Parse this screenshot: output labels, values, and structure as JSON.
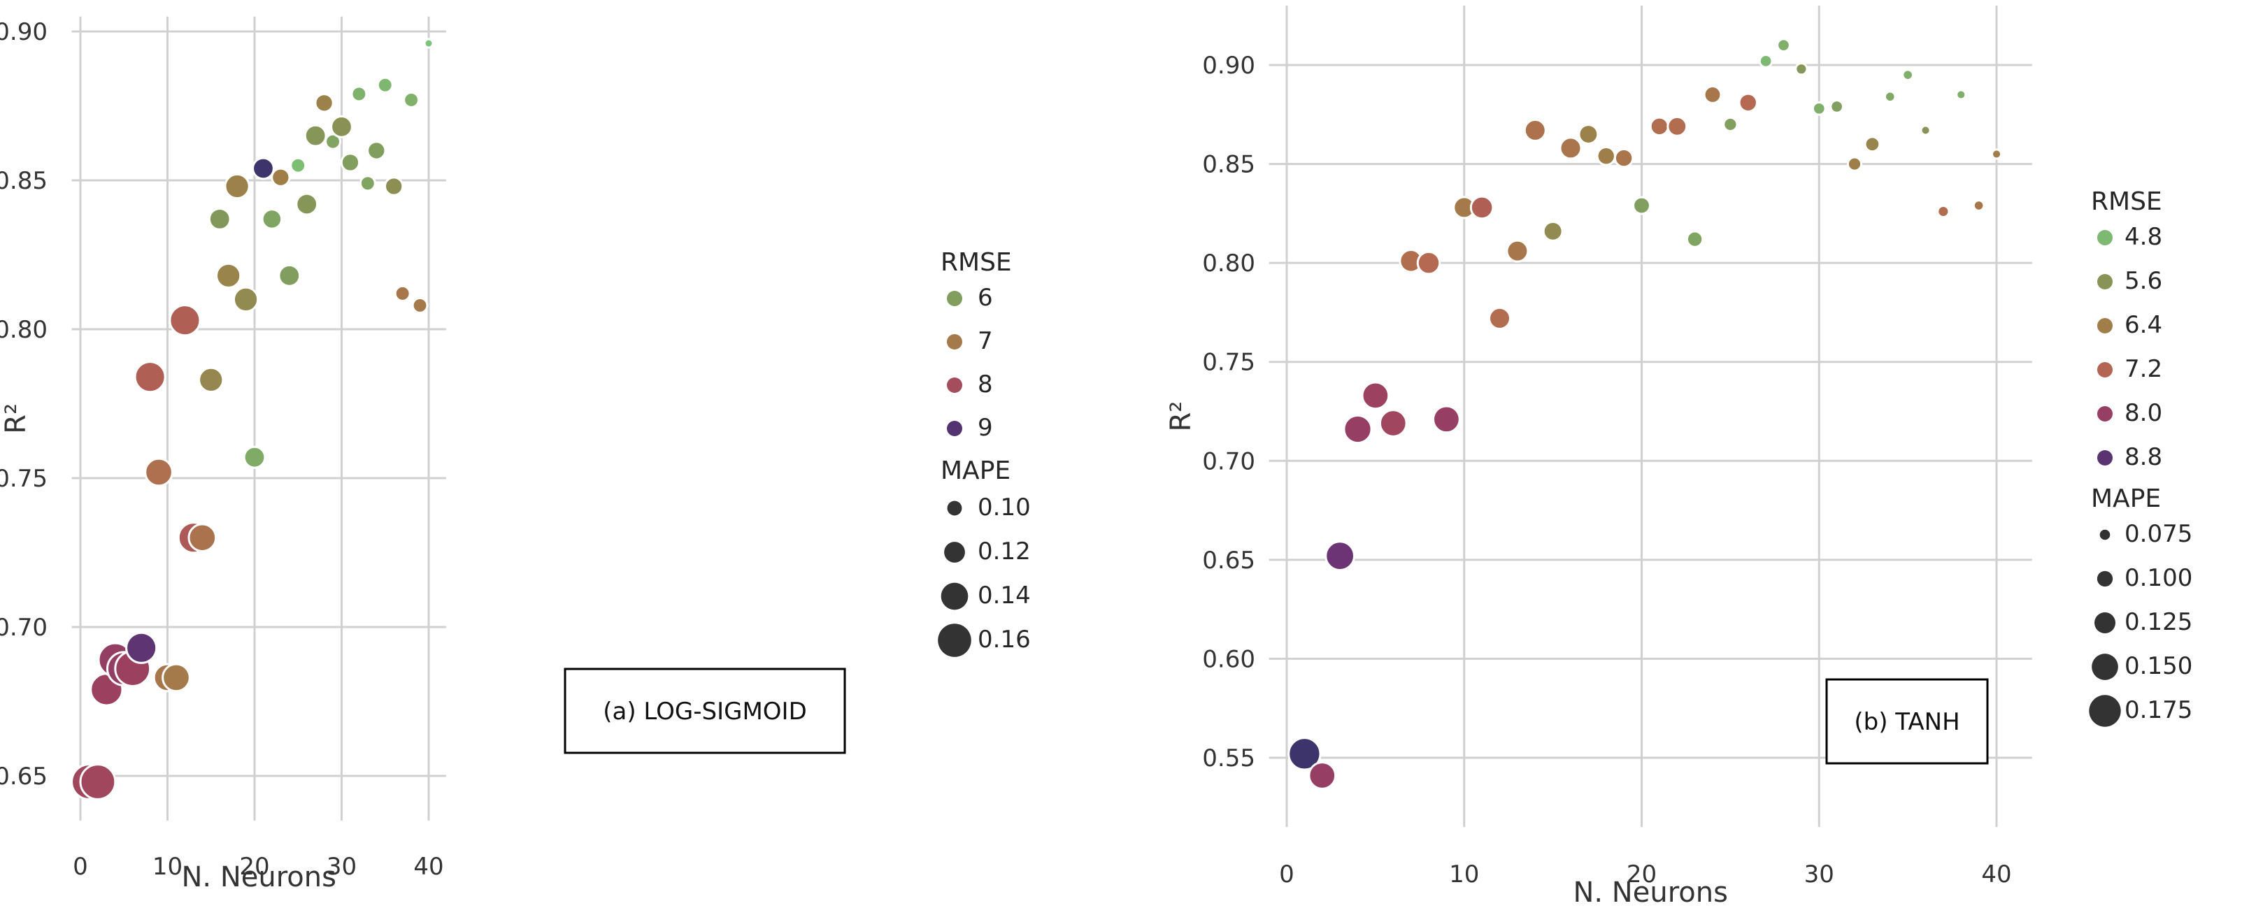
{
  "chart_data": [
    {
      "type": "scatter",
      "annotation": "(a) LOG-SIGMOID",
      "xlabel": "N. Neurons",
      "ylabel": "R²",
      "xlim": [
        -1,
        42
      ],
      "ylim": [
        0.635,
        0.905
      ],
      "xticks": [
        0,
        10,
        20,
        30,
        40
      ],
      "yticks": [
        0.65,
        0.7,
        0.75,
        0.8,
        0.85,
        0.9
      ],
      "ytick_labels": [
        "0.65",
        "0.70",
        "0.75",
        "0.80",
        "0.85",
        "0.90"
      ],
      "grid": true,
      "hue_range": [
        5.4,
        9.3
      ],
      "size_range": [
        0.08,
        0.17
      ],
      "legend": {
        "hue_title": "RMSE",
        "hue_values": [
          6,
          7,
          8,
          9
        ],
        "hue_labels": [
          "6",
          "7",
          "8",
          "9"
        ],
        "size_title": "MAPE",
        "size_values": [
          0.1,
          0.12,
          0.14,
          0.16
        ],
        "size_labels": [
          "0.10",
          "0.12",
          "0.14",
          "0.16"
        ]
      },
      "points": [
        {
          "x": 1,
          "y": 0.648,
          "rmse": 8.1,
          "mape": 0.165
        },
        {
          "x": 2,
          "y": 0.648,
          "rmse": 8.1,
          "mape": 0.165
        },
        {
          "x": 3,
          "y": 0.679,
          "rmse": 8.2,
          "mape": 0.155
        },
        {
          "x": 4,
          "y": 0.689,
          "rmse": 8.3,
          "mape": 0.16
        },
        {
          "x": 5,
          "y": 0.686,
          "rmse": 8.3,
          "mape": 0.16
        },
        {
          "x": 6,
          "y": 0.686,
          "rmse": 8.2,
          "mape": 0.165
        },
        {
          "x": 7,
          "y": 0.693,
          "rmse": 8.9,
          "mape": 0.15
        },
        {
          "x": 8,
          "y": 0.784,
          "rmse": 7.7,
          "mape": 0.15
        },
        {
          "x": 9,
          "y": 0.752,
          "rmse": 7.3,
          "mape": 0.14
        },
        {
          "x": 10,
          "y": 0.683,
          "rmse": 7.1,
          "mape": 0.14
        },
        {
          "x": 11,
          "y": 0.683,
          "rmse": 7.0,
          "mape": 0.14
        },
        {
          "x": 12,
          "y": 0.803,
          "rmse": 7.7,
          "mape": 0.15
        },
        {
          "x": 13,
          "y": 0.73,
          "rmse": 7.8,
          "mape": 0.15
        },
        {
          "x": 14,
          "y": 0.73,
          "rmse": 7.2,
          "mape": 0.14
        },
        {
          "x": 15,
          "y": 0.783,
          "rmse": 6.6,
          "mape": 0.13
        },
        {
          "x": 16,
          "y": 0.837,
          "rmse": 6.1,
          "mape": 0.12
        },
        {
          "x": 17,
          "y": 0.818,
          "rmse": 6.7,
          "mape": 0.13
        },
        {
          "x": 18,
          "y": 0.848,
          "rmse": 6.8,
          "mape": 0.13
        },
        {
          "x": 19,
          "y": 0.81,
          "rmse": 6.5,
          "mape": 0.13
        },
        {
          "x": 20,
          "y": 0.757,
          "rmse": 5.8,
          "mape": 0.12
        },
        {
          "x": 21,
          "y": 0.854,
          "rmse": 9.2,
          "mape": 0.12
        },
        {
          "x": 22,
          "y": 0.837,
          "rmse": 5.9,
          "mape": 0.115
        },
        {
          "x": 23,
          "y": 0.851,
          "rmse": 6.9,
          "mape": 0.11
        },
        {
          "x": 24,
          "y": 0.818,
          "rmse": 6.0,
          "mape": 0.12
        },
        {
          "x": 25,
          "y": 0.855,
          "rmse": 5.5,
          "mape": 0.1
        },
        {
          "x": 26,
          "y": 0.842,
          "rmse": 6.2,
          "mape": 0.12
        },
        {
          "x": 27,
          "y": 0.865,
          "rmse": 6.2,
          "mape": 0.12
        },
        {
          "x": 28,
          "y": 0.876,
          "rmse": 6.8,
          "mape": 0.11
        },
        {
          "x": 29,
          "y": 0.863,
          "rmse": 5.9,
          "mape": 0.1
        },
        {
          "x": 30,
          "y": 0.868,
          "rmse": 6.3,
          "mape": 0.12
        },
        {
          "x": 31,
          "y": 0.856,
          "rmse": 6.0,
          "mape": 0.11
        },
        {
          "x": 32,
          "y": 0.879,
          "rmse": 5.7,
          "mape": 0.1
        },
        {
          "x": 33,
          "y": 0.849,
          "rmse": 5.9,
          "mape": 0.1
        },
        {
          "x": 34,
          "y": 0.86,
          "rmse": 6.0,
          "mape": 0.11
        },
        {
          "x": 35,
          "y": 0.882,
          "rmse": 5.6,
          "mape": 0.1
        },
        {
          "x": 36,
          "y": 0.848,
          "rmse": 6.4,
          "mape": 0.11
        },
        {
          "x": 37,
          "y": 0.812,
          "rmse": 7.1,
          "mape": 0.1
        },
        {
          "x": 38,
          "y": 0.877,
          "rmse": 5.7,
          "mape": 0.1
        },
        {
          "x": 39,
          "y": 0.808,
          "rmse": 7.0,
          "mape": 0.1
        },
        {
          "x": 40,
          "y": 0.896,
          "rmse": 5.4,
          "mape": 0.08
        }
      ]
    },
    {
      "type": "scatter",
      "annotation": "(b) TANH",
      "xlabel": "N. Neurons",
      "ylabel": "R²",
      "xlim": [
        -1,
        42
      ],
      "ylim": [
        0.515,
        0.93
      ],
      "xticks": [
        0,
        10,
        20,
        30,
        40
      ],
      "yticks": [
        0.55,
        0.6,
        0.65,
        0.7,
        0.75,
        0.8,
        0.85,
        0.9
      ],
      "ytick_labels": [
        "0.55",
        "0.60",
        "0.65",
        "0.70",
        "0.75",
        "0.80",
        "0.85",
        "0.90"
      ],
      "grid": true,
      "hue_range": [
        4.6,
        9.2
      ],
      "size_range": [
        0.06,
        0.19
      ],
      "legend": {
        "hue_title": "RMSE",
        "hue_values": [
          4.8,
          5.6,
          6.4,
          7.2,
          8.0,
          8.8
        ],
        "hue_labels": [
          "4.8",
          "5.6",
          "6.4",
          "7.2",
          "8.0",
          "8.8"
        ],
        "size_title": "MAPE",
        "size_values": [
          0.075,
          0.1,
          0.125,
          0.15,
          0.175
        ],
        "size_labels": [
          "0.075",
          "0.100",
          "0.125",
          "0.150",
          "0.175"
        ]
      },
      "points": [
        {
          "x": 1,
          "y": 0.552,
          "rmse": 9.1,
          "mape": 0.175
        },
        {
          "x": 2,
          "y": 0.541,
          "rmse": 8.0,
          "mape": 0.15
        },
        {
          "x": 3,
          "y": 0.652,
          "rmse": 8.6,
          "mape": 0.16
        },
        {
          "x": 4,
          "y": 0.716,
          "rmse": 8.0,
          "mape": 0.155
        },
        {
          "x": 5,
          "y": 0.733,
          "rmse": 7.9,
          "mape": 0.15
        },
        {
          "x": 6,
          "y": 0.719,
          "rmse": 7.8,
          "mape": 0.15
        },
        {
          "x": 7,
          "y": 0.801,
          "rmse": 6.9,
          "mape": 0.13
        },
        {
          "x": 8,
          "y": 0.8,
          "rmse": 7.1,
          "mape": 0.13
        },
        {
          "x": 9,
          "y": 0.721,
          "rmse": 8.0,
          "mape": 0.15
        },
        {
          "x": 10,
          "y": 0.828,
          "rmse": 6.5,
          "mape": 0.125
        },
        {
          "x": 11,
          "y": 0.828,
          "rmse": 7.3,
          "mape": 0.13
        },
        {
          "x": 12,
          "y": 0.772,
          "rmse": 7.0,
          "mape": 0.125
        },
        {
          "x": 13,
          "y": 0.806,
          "rmse": 6.6,
          "mape": 0.125
        },
        {
          "x": 14,
          "y": 0.867,
          "rmse": 6.8,
          "mape": 0.125
        },
        {
          "x": 15,
          "y": 0.816,
          "rmse": 5.9,
          "mape": 0.115
        },
        {
          "x": 16,
          "y": 0.858,
          "rmse": 6.7,
          "mape": 0.125
        },
        {
          "x": 17,
          "y": 0.865,
          "rmse": 6.2,
          "mape": 0.115
        },
        {
          "x": 18,
          "y": 0.854,
          "rmse": 6.3,
          "mape": 0.11
        },
        {
          "x": 19,
          "y": 0.853,
          "rmse": 6.7,
          "mape": 0.11
        },
        {
          "x": 20,
          "y": 0.829,
          "rmse": 5.3,
          "mape": 0.105
        },
        {
          "x": 21,
          "y": 0.869,
          "rmse": 6.9,
          "mape": 0.11
        },
        {
          "x": 22,
          "y": 0.869,
          "rmse": 7.0,
          "mape": 0.115
        },
        {
          "x": 23,
          "y": 0.812,
          "rmse": 5.2,
          "mape": 0.1
        },
        {
          "x": 24,
          "y": 0.885,
          "rmse": 6.6,
          "mape": 0.105
        },
        {
          "x": 25,
          "y": 0.87,
          "rmse": 5.3,
          "mape": 0.09
        },
        {
          "x": 26,
          "y": 0.881,
          "rmse": 7.1,
          "mape": 0.11
        },
        {
          "x": 27,
          "y": 0.902,
          "rmse": 4.8,
          "mape": 0.085
        },
        {
          "x": 28,
          "y": 0.91,
          "rmse": 5.0,
          "mape": 0.085
        },
        {
          "x": 29,
          "y": 0.898,
          "rmse": 5.5,
          "mape": 0.08
        },
        {
          "x": 30,
          "y": 0.878,
          "rmse": 5.0,
          "mape": 0.085
        },
        {
          "x": 31,
          "y": 0.879,
          "rmse": 5.3,
          "mape": 0.085
        },
        {
          "x": 32,
          "y": 0.85,
          "rmse": 6.3,
          "mape": 0.09
        },
        {
          "x": 33,
          "y": 0.86,
          "rmse": 6.1,
          "mape": 0.095
        },
        {
          "x": 34,
          "y": 0.884,
          "rmse": 5.1,
          "mape": 0.075
        },
        {
          "x": 35,
          "y": 0.895,
          "rmse": 5.0,
          "mape": 0.075
        },
        {
          "x": 36,
          "y": 0.867,
          "rmse": 5.6,
          "mape": 0.07
        },
        {
          "x": 37,
          "y": 0.826,
          "rmse": 6.9,
          "mape": 0.08
        },
        {
          "x": 38,
          "y": 0.885,
          "rmse": 5.0,
          "mape": 0.07
        },
        {
          "x": 39,
          "y": 0.829,
          "rmse": 6.6,
          "mape": 0.075
        },
        {
          "x": 40,
          "y": 0.855,
          "rmse": 6.4,
          "mape": 0.07
        }
      ]
    }
  ]
}
